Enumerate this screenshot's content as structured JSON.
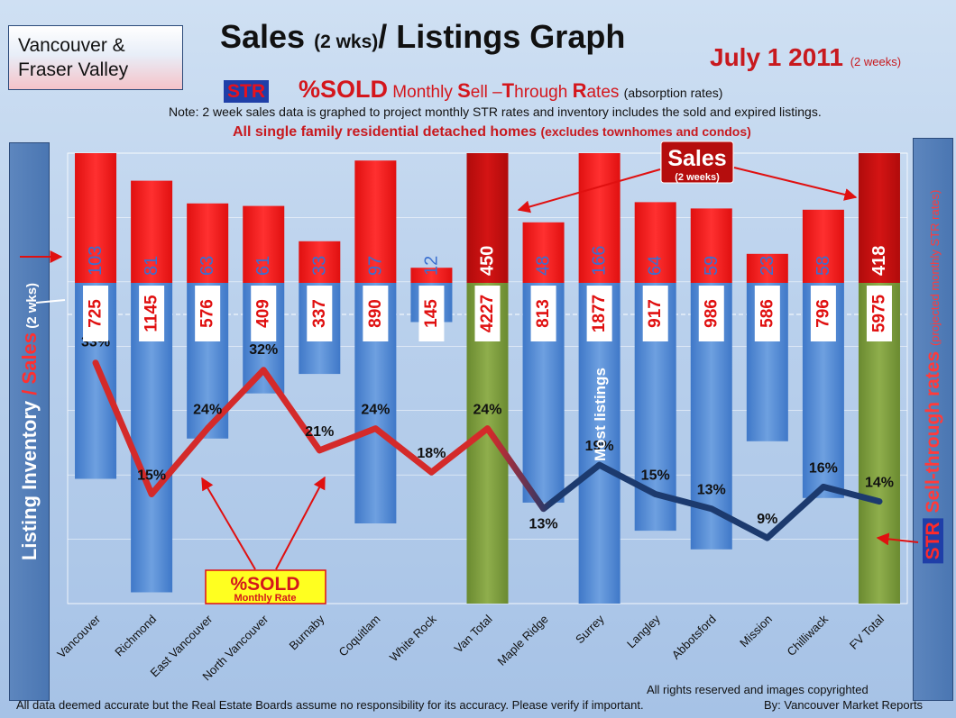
{
  "region": [
    "Vancouver &",
    "Fraser Valley"
  ],
  "title": {
    "main": "Sales ",
    "paren": "(2 wks)",
    "rest": "/ Listings Graph"
  },
  "date": {
    "main": "July 1 2011 ",
    "small": "(2 weeks)"
  },
  "subtitle": {
    "badge": "STR",
    "sold": "%SOLD",
    "p1": " Monthly ",
    "s": "S",
    "p2": "ell",
    "dash": " –",
    "t": "T",
    "p3": "hrough ",
    "r": "R",
    "p4": "ates ",
    "small": "(absorption rates)"
  },
  "note": "Note: 2 week sales data is graphed to project monthly STR rates and inventory includes the sold and expired listings.",
  "scope": {
    "main": "All single family residential detached homes ",
    "small": "(excludes townhomes and condos)"
  },
  "left_axis": {
    "p1": "Listing Inventory ",
    "slash": "/ ",
    "sales": "Sales",
    "small": " (2 wks)"
  },
  "right_axis": {
    "str": "STR",
    "main": " Sell-through rates ",
    "small": "(projected monthly STR rates)"
  },
  "annotations": {
    "sales_main": "Sales",
    "sales_sub": "(2 weeks)",
    "sold_main": "%SOLD",
    "sold_sub": "Monthly Rate",
    "most_listings": "Most listings"
  },
  "footer": {
    "rights": "All rights reserved and  images copyrighted",
    "disclaimer": "All data deemed accurate but the Real Estate Boards assume no responsibility for its accuracy.  Please verify if important.",
    "by": "By: Vancouver Market Reports"
  },
  "colors": {
    "sales_bar": "#ee1c1c",
    "sales_total": "#c00d0d",
    "listing_bar": "#5b8fd6",
    "listing_total": "#7a9a3c",
    "line_red": "#d42a2a",
    "line_navy": "#1c3a6e"
  },
  "chart_data": {
    "type": "bar",
    "categories": [
      "Vancouver",
      "Richmond",
      "East Vancouver",
      "North Vancouver",
      "Burnaby",
      "Coquitlam",
      "White Rock",
      "Van Total",
      "Maple Ridge",
      "Surrey",
      "Langley",
      "Abbotsford",
      "Mission",
      "Chilliwack",
      "FV Total"
    ],
    "series": [
      {
        "name": "Sales",
        "values": [
          103,
          81,
          63,
          61,
          33,
          97,
          12,
          450,
          48,
          166,
          64,
          59,
          23,
          58,
          418
        ]
      },
      {
        "name": "Listing Inventory",
        "values": [
          725,
          1145,
          576,
          409,
          337,
          890,
          145,
          4227,
          813,
          1877,
          917,
          986,
          586,
          796,
          5975
        ]
      },
      {
        "name": "%SOLD",
        "values": [
          33,
          15,
          24,
          32,
          21,
          24,
          18,
          24,
          13,
          19,
          15,
          13,
          9,
          16,
          14
        ]
      }
    ],
    "totals": [
      "Van Total",
      "FV Total"
    ]
  }
}
